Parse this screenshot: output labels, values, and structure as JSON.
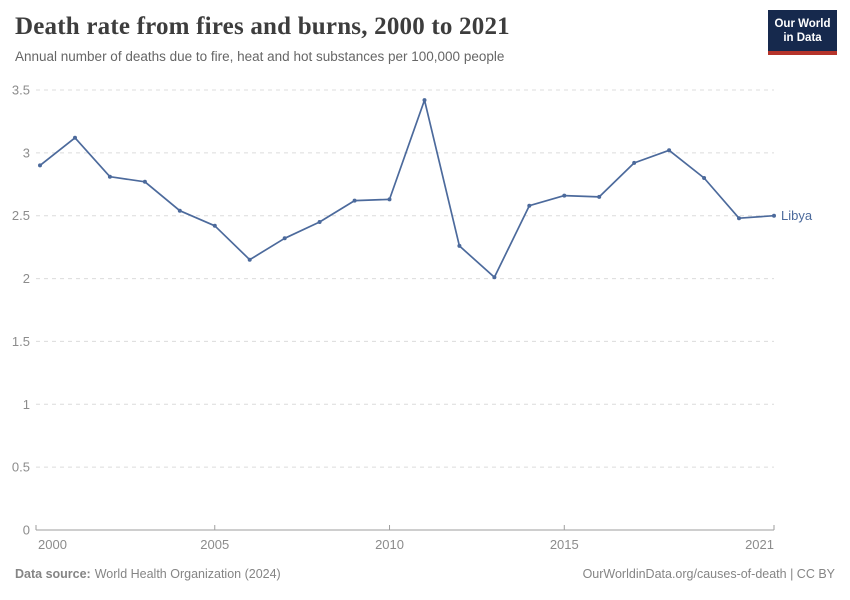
{
  "header": {
    "title": "Death rate from fires and burns, 2000 to 2021",
    "subtitle": "Annual number of deaths due to fire, heat and hot substances per 100,000 people"
  },
  "logo": {
    "line1": "Our World",
    "line2": "in Data"
  },
  "chart_data": {
    "type": "line",
    "title": "Death rate from fires and burns, 2000 to 2021",
    "x": [
      2000,
      2001,
      2002,
      2003,
      2004,
      2005,
      2006,
      2007,
      2008,
      2009,
      2010,
      2011,
      2012,
      2013,
      2014,
      2015,
      2016,
      2017,
      2018,
      2019,
      2020,
      2021
    ],
    "series": [
      {
        "name": "Libya",
        "color": "#4C6A9C",
        "values": [
          2.9,
          3.12,
          2.81,
          2.77,
          2.54,
          2.42,
          2.15,
          2.32,
          2.45,
          2.62,
          2.63,
          3.42,
          2.26,
          2.01,
          2.58,
          2.66,
          2.65,
          2.92,
          3.02,
          2.8,
          2.48,
          2.5
        ]
      }
    ],
    "xlabel": "",
    "ylabel": "",
    "xlim": [
      2000,
      2021
    ],
    "ylim": [
      0,
      3.5
    ],
    "x_ticks": [
      2000,
      2005,
      2010,
      2015,
      2021
    ],
    "y_ticks": [
      0,
      0.5,
      1,
      1.5,
      2,
      2.5,
      3,
      3.5
    ],
    "grid": "horizontal dashed",
    "legend_position": "end-of-line entity label"
  },
  "footer": {
    "source_label": "Data source:",
    "source_value": "World Health Organization (2024)",
    "attribution": "OurWorldinData.org/causes-of-death | CC BY"
  },
  "colors": {
    "line": "#4C6A9C",
    "grid": "#dcdcdc",
    "axis": "#9e9e9e",
    "tick_text": "#8c8c8c",
    "title_text": "#3d3d3d",
    "subtitle_text": "#666666",
    "footer_text": "#858585",
    "logo_bg": "#16294d",
    "logo_red": "#b5332a"
  }
}
